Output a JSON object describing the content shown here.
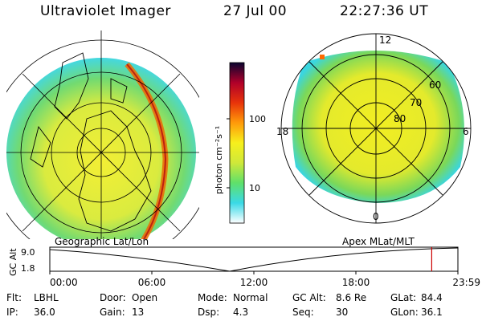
{
  "header": {
    "title": "Ultraviolet Imager",
    "date": "27 Jul 00",
    "time": "22:27:36 UT"
  },
  "maps": {
    "geographic_label": "Geographic Lat/Lon",
    "apex_label": "Apex MLat/MLT",
    "apex_lat_labels": [
      "60",
      "70",
      "80"
    ],
    "apex_mlt_labels": [
      "12",
      "18",
      "6",
      "0"
    ]
  },
  "colorbar": {
    "ticks": [
      "100",
      "10"
    ],
    "unit_label": "photon cm⁻²s⁻¹",
    "colors": [
      "#ffffff",
      "#3ad9e6",
      "#5fe06a",
      "#cfe83a",
      "#f7f01c",
      "#ff9a0a",
      "#e8330a",
      "#b0002a",
      "#0a0530"
    ]
  },
  "altitude_plot": {
    "ylabel": "GC Alt",
    "yticks": [
      "9.0",
      "1.8"
    ],
    "xticks": [
      "00:00",
      "06:00",
      "12:00",
      "18:00",
      "23:59"
    ],
    "marker_time_hours": 22.46,
    "marker_color": "#cc0000"
  },
  "info": {
    "row1": [
      {
        "label": "Flt:",
        "value": "LBHL"
      },
      {
        "label": "Door:",
        "value": "Open"
      },
      {
        "label": "Mode:",
        "value": "Normal"
      },
      {
        "label": "GC Alt:",
        "value": "8.6 Re"
      },
      {
        "label": "GLat:",
        "value": "84.4"
      }
    ],
    "row2": [
      {
        "label": "IP:",
        "value": "36.0"
      },
      {
        "label": "Gain:",
        "value": "13"
      },
      {
        "label": "Dsp:",
        "value": "4.3"
      },
      {
        "label": "Seq:",
        "value": "30"
      },
      {
        "label": "GLon:",
        "value": "36.1"
      }
    ]
  }
}
